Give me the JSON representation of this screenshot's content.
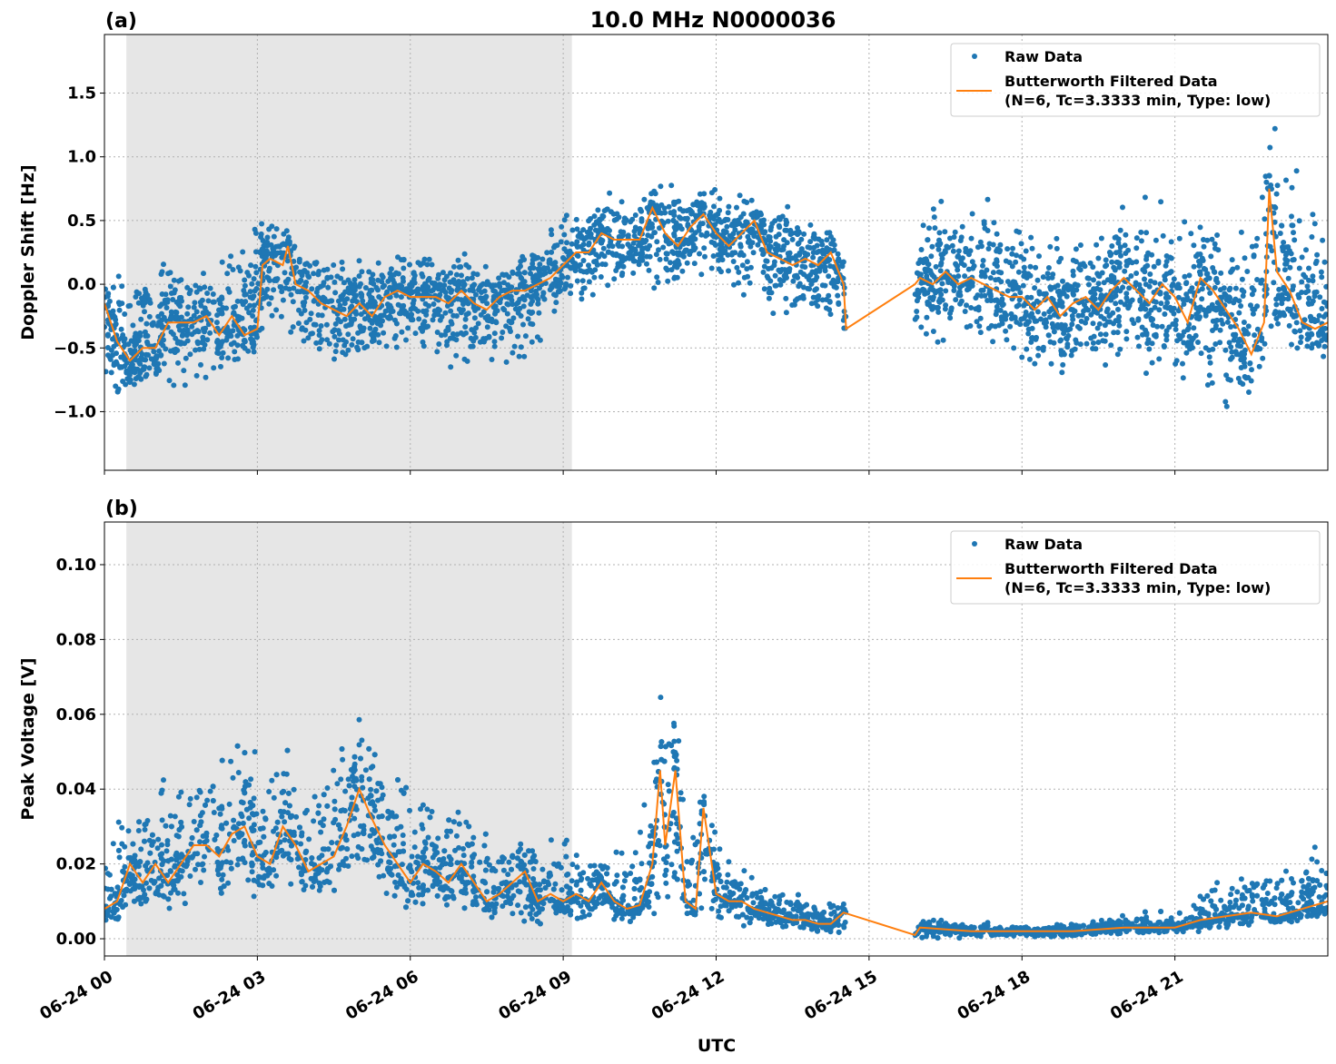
{
  "title": "10.0 MHz N0000036",
  "xlabel": "UTC",
  "colors": {
    "raw": "#1f77b4",
    "filtered": "#ff7f0e",
    "shade": "#e6e6e6",
    "grid": "#b0b0b0"
  },
  "chart_data": [
    {
      "type": "scatter+line",
      "panel_label": "(a)",
      "ylabel": "Doppler Shift [Hz]",
      "xlim_hours": [
        0,
        24
      ],
      "ylim": [
        -1.46,
        1.96
      ],
      "xticks": [
        "06-24 00",
        "06-24 03",
        "06-24 06",
        "06-24 09",
        "06-24 12",
        "06-24 15",
        "06-24 18",
        "06-24 21"
      ],
      "xtick_hours": [
        0,
        3,
        6,
        9,
        12,
        15,
        18,
        21
      ],
      "yticks": [
        -1.0,
        -0.5,
        0.0,
        0.5,
        1.0,
        1.5
      ],
      "ytick_labels": [
        "−1.0",
        "−0.5",
        "0.0",
        "0.5",
        "1.0",
        "1.5"
      ],
      "grid": true,
      "shaded_hours": [
        0.43,
        9.17
      ],
      "data_gap_hours": [
        14.55,
        15.9
      ],
      "legend": {
        "position": "upper-right",
        "raw": "Raw Data",
        "filtered_line1": "Butterworth Filtered Data",
        "filtered_line2": "(N=6, Tc=3.3333 min, Type: low)"
      },
      "filtered": {
        "x": [
          0,
          0.25,
          0.5,
          0.75,
          1,
          1.25,
          1.5,
          1.75,
          2,
          2.25,
          2.5,
          2.75,
          3,
          3.1,
          3.25,
          3.5,
          3.6,
          3.75,
          4,
          4.25,
          4.5,
          4.75,
          5,
          5.25,
          5.5,
          5.75,
          6,
          6.25,
          6.5,
          6.75,
          7,
          7.25,
          7.5,
          7.75,
          8,
          8.25,
          8.5,
          8.75,
          9,
          9.25,
          9.5,
          9.75,
          10,
          10.25,
          10.5,
          10.75,
          11,
          11.25,
          11.5,
          11.75,
          12,
          12.25,
          12.5,
          12.75,
          13,
          13.25,
          13.5,
          13.75,
          14,
          14.25,
          14.5,
          14.55,
          15.9,
          16,
          16.25,
          16.5,
          16.75,
          17,
          17.25,
          17.5,
          17.75,
          18,
          18.25,
          18.5,
          18.75,
          19,
          19.25,
          19.5,
          19.75,
          20,
          20.25,
          20.5,
          20.75,
          21,
          21.25,
          21.5,
          21.75,
          22,
          22.25,
          22.5,
          22.75,
          22.85,
          23,
          23.25,
          23.5,
          23.75,
          24
        ],
        "y": [
          -0.15,
          -0.45,
          -0.6,
          -0.5,
          -0.5,
          -0.3,
          -0.3,
          -0.3,
          -0.25,
          -0.4,
          -0.25,
          -0.4,
          -0.35,
          0.15,
          0.2,
          0.15,
          0.3,
          0.0,
          -0.05,
          -0.15,
          -0.2,
          -0.25,
          -0.15,
          -0.25,
          -0.1,
          -0.05,
          -0.1,
          -0.1,
          -0.1,
          -0.15,
          -0.05,
          -0.15,
          -0.2,
          -0.1,
          -0.05,
          -0.05,
          0.0,
          0.05,
          0.15,
          0.25,
          0.25,
          0.4,
          0.35,
          0.35,
          0.35,
          0.6,
          0.4,
          0.3,
          0.45,
          0.55,
          0.4,
          0.3,
          0.4,
          0.5,
          0.25,
          0.2,
          0.15,
          0.2,
          0.15,
          0.25,
          0.0,
          -0.35,
          0.0,
          0.05,
          0.0,
          0.1,
          0.0,
          0.05,
          0.0,
          -0.05,
          -0.1,
          -0.1,
          -0.2,
          -0.1,
          -0.25,
          -0.15,
          -0.1,
          -0.2,
          -0.05,
          0.05,
          -0.05,
          -0.15,
          0.0,
          -0.1,
          -0.3,
          0.05,
          -0.05,
          -0.2,
          -0.35,
          -0.55,
          -0.3,
          0.75,
          0.1,
          -0.05,
          -0.3,
          -0.35,
          -0.3
        ]
      },
      "raw_envelope": {
        "x": [
          0,
          1,
          2,
          3,
          4,
          5,
          6,
          7,
          8,
          9,
          10,
          11,
          12,
          13,
          14,
          14.55,
          15.9,
          16,
          17,
          18,
          19,
          20,
          21,
          22,
          23,
          24
        ],
        "min": [
          -1.0,
          -0.9,
          -0.9,
          -0.55,
          -0.75,
          -0.75,
          -0.55,
          -0.8,
          -0.7,
          -0.3,
          -0.1,
          -0.1,
          0.0,
          -0.3,
          -0.4,
          -0.5,
          -0.5,
          -0.5,
          -0.5,
          -0.8,
          -0.8,
          -0.7,
          -0.9,
          -1.2,
          -0.7,
          -0.7
        ],
        "max": [
          0.1,
          0.25,
          0.2,
          0.75,
          0.3,
          0.3,
          0.3,
          0.3,
          0.25,
          0.6,
          0.85,
          0.85,
          0.8,
          0.7,
          0.6,
          0.3,
          0.6,
          0.8,
          0.85,
          0.6,
          0.5,
          0.75,
          0.7,
          0.4,
          1.6,
          0.4
        ]
      }
    },
    {
      "type": "scatter+line",
      "panel_label": "(b)",
      "ylabel": "Peak Voltage [V]",
      "xlim_hours": [
        0,
        24
      ],
      "ylim": [
        -0.0046,
        0.1114
      ],
      "xticks": [
        "06-24 00",
        "06-24 03",
        "06-24 06",
        "06-24 09",
        "06-24 12",
        "06-24 15",
        "06-24 18",
        "06-24 21"
      ],
      "xtick_hours": [
        0,
        3,
        6,
        9,
        12,
        15,
        18,
        21
      ],
      "yticks": [
        0.0,
        0.02,
        0.04,
        0.06,
        0.08,
        0.1
      ],
      "ytick_labels": [
        "0.00",
        "0.02",
        "0.04",
        "0.06",
        "0.08",
        "0.10"
      ],
      "grid": true,
      "shaded_hours": [
        0.43,
        9.17
      ],
      "data_gap_hours": [
        14.55,
        15.9
      ],
      "legend": {
        "position": "upper-right",
        "raw": "Raw Data",
        "filtered_line1": "Butterworth Filtered Data",
        "filtered_line2": "(N=6, Tc=3.3333 min, Type: low)"
      },
      "filtered": {
        "x": [
          0,
          0.25,
          0.5,
          0.75,
          1,
          1.25,
          1.5,
          1.75,
          2,
          2.25,
          2.5,
          2.75,
          3,
          3.25,
          3.5,
          3.75,
          4,
          4.25,
          4.5,
          4.75,
          5,
          5.25,
          5.5,
          5.75,
          6,
          6.25,
          6.5,
          6.75,
          7,
          7.25,
          7.5,
          7.75,
          8,
          8.25,
          8.5,
          8.75,
          9,
          9.25,
          9.5,
          9.75,
          10,
          10.25,
          10.5,
          10.75,
          10.9,
          11,
          11.2,
          11.4,
          11.6,
          11.75,
          12,
          12.25,
          12.5,
          12.75,
          13,
          13.25,
          13.5,
          13.75,
          14,
          14.25,
          14.5,
          15.9,
          16,
          17,
          18,
          19,
          20,
          21,
          21.5,
          22,
          22.5,
          23,
          23.5,
          24
        ],
        "y": [
          0.008,
          0.01,
          0.02,
          0.015,
          0.02,
          0.015,
          0.02,
          0.025,
          0.025,
          0.022,
          0.028,
          0.03,
          0.022,
          0.02,
          0.03,
          0.025,
          0.018,
          0.02,
          0.022,
          0.03,
          0.04,
          0.032,
          0.025,
          0.02,
          0.015,
          0.02,
          0.018,
          0.015,
          0.02,
          0.015,
          0.01,
          0.012,
          0.015,
          0.018,
          0.01,
          0.012,
          0.01,
          0.012,
          0.01,
          0.015,
          0.01,
          0.008,
          0.009,
          0.02,
          0.045,
          0.025,
          0.045,
          0.01,
          0.008,
          0.035,
          0.012,
          0.01,
          0.01,
          0.008,
          0.007,
          0.006,
          0.005,
          0.005,
          0.004,
          0.004,
          0.007,
          0.001,
          0.003,
          0.002,
          0.002,
          0.002,
          0.003,
          0.003,
          0.005,
          0.006,
          0.007,
          0.006,
          0.008,
          0.01
        ]
      },
      "raw_envelope": {
        "x": [
          0,
          1,
          2,
          3,
          4,
          5,
          6,
          7,
          8,
          9,
          10,
          11,
          12,
          13,
          14,
          14.55,
          15.9,
          16,
          17,
          18,
          19,
          20,
          21,
          22,
          23,
          24
        ],
        "min": [
          0.003,
          0.005,
          0.008,
          0.008,
          0.008,
          0.01,
          0.005,
          0.004,
          0.004,
          0.003,
          0.003,
          0.005,
          0.003,
          0.002,
          0.001,
          0.001,
          0.0,
          0.0,
          0.0,
          0.0,
          0.0,
          0.001,
          0.001,
          0.002,
          0.003,
          0.003
        ],
        "max": [
          0.03,
          0.045,
          0.055,
          0.06,
          0.045,
          0.065,
          0.045,
          0.04,
          0.03,
          0.03,
          0.025,
          0.075,
          0.03,
          0.015,
          0.012,
          0.011,
          0.007,
          0.006,
          0.005,
          0.004,
          0.005,
          0.007,
          0.008,
          0.018,
          0.025,
          0.03
        ]
      }
    }
  ]
}
